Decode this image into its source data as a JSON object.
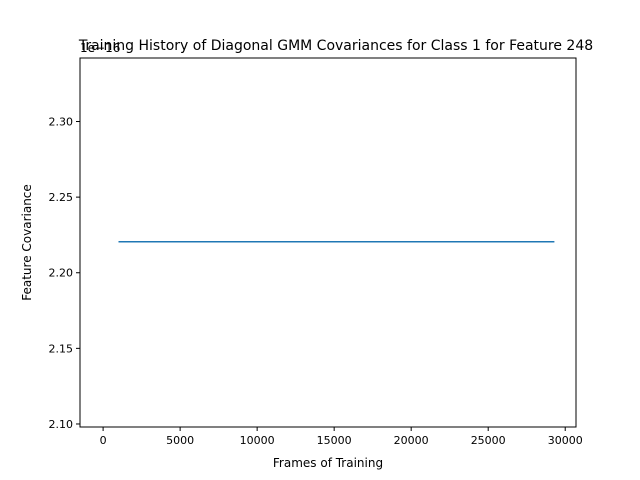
{
  "chart_data": {
    "type": "line",
    "title": "Training History of Diagonal GMM Covariances for Class 1 for Feature 248",
    "xlabel": "Frames of Training",
    "ylabel": "Feature Covariance",
    "offset_label": "1e−16",
    "xlim": [
      -1500,
      30700
    ],
    "ylim": [
      2.098,
      2.342
    ],
    "xticks": [
      0,
      5000,
      10000,
      15000,
      20000,
      25000,
      30000
    ],
    "xtick_labels": [
      "0",
      "5000",
      "10000",
      "15000",
      "20000",
      "25000",
      "30000"
    ],
    "yticks": [
      2.1,
      2.15,
      2.2,
      2.25,
      2.3
    ],
    "ytick_labels": [
      "2.10",
      "2.15",
      "2.20",
      "2.25",
      "2.30"
    ],
    "grid": false,
    "series": [
      {
        "color": "#1f77b4",
        "x": [
          1000,
          29300
        ],
        "y": [
          2.2205,
          2.2205
        ]
      }
    ]
  }
}
